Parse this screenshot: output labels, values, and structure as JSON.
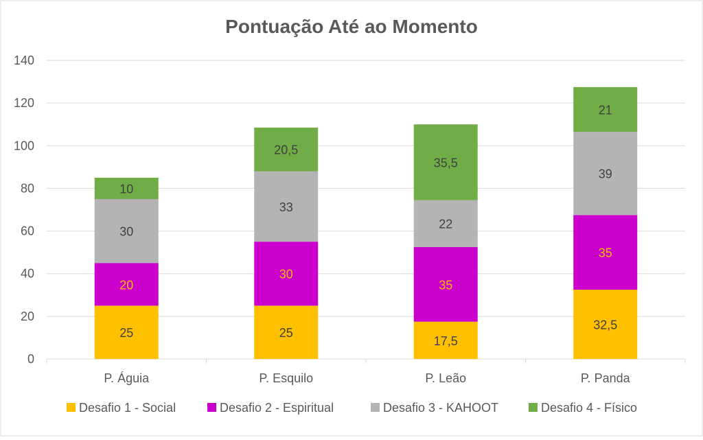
{
  "chart_data": {
    "type": "bar",
    "stacked": true,
    "title": "Pontuação Até ao Momento",
    "xlabel": "",
    "ylabel": "",
    "ylim": [
      0,
      140
    ],
    "yticks": [
      0,
      20,
      40,
      60,
      80,
      100,
      120,
      140
    ],
    "grid": true,
    "legend_position": "bottom",
    "categories": [
      "P. Águia",
      "P. Esquilo",
      "P. Leão",
      "P. Panda"
    ],
    "series": [
      {
        "name": "Desafio 1 - Social",
        "color": "#FFC000",
        "label_color": "#404040",
        "values": [
          25,
          25,
          17.5,
          32.5
        ],
        "labels": [
          "25",
          "25",
          "17,5",
          "32,5"
        ]
      },
      {
        "name": "Desafio 2 - Espiritual",
        "color": "#CC00CC",
        "label_color": "#FFC000",
        "values": [
          20,
          30,
          35,
          35
        ],
        "labels": [
          "20",
          "30",
          "35",
          "35"
        ]
      },
      {
        "name": "Desafio 3 - KAHOOT",
        "color": "#B4B4B4",
        "label_color": "#404040",
        "values": [
          30,
          33,
          22,
          39
        ],
        "labels": [
          "30",
          "33",
          "22",
          "39"
        ]
      },
      {
        "name": "Desafio 4 - Físico",
        "color": "#70AD47",
        "label_color": "#404040",
        "values": [
          10,
          20.5,
          35.5,
          21
        ],
        "labels": [
          "10",
          "20,5",
          "35,5",
          "21"
        ]
      }
    ]
  }
}
